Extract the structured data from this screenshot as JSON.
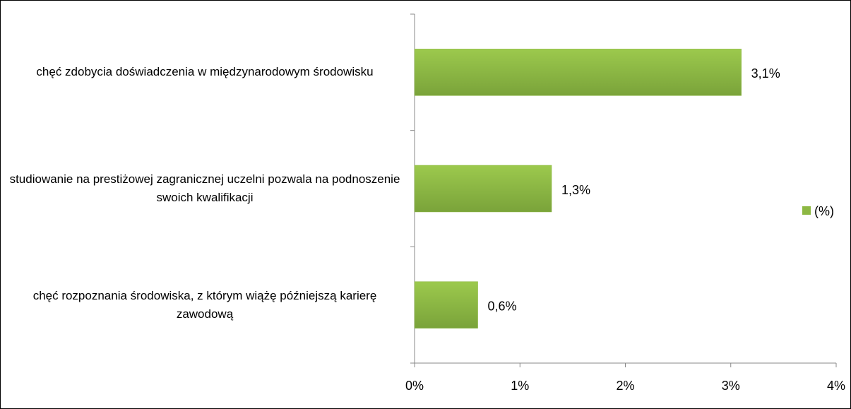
{
  "chart_data": {
    "type": "bar",
    "orientation": "horizontal",
    "categories": [
      "chęć zdobycia doświadczenia w międzynarodowym środowisku",
      "studiowanie na prestiżowej zagranicznej uczelni pozwala na podnoszenie swoich kwalifikacji",
      "chęć rozpoznania środowiska, z którym wiążę późniejszą karierę zawodową"
    ],
    "series": [
      {
        "name": "(%)",
        "color": "#8db843",
        "values": [
          3.1,
          1.3,
          0.6
        ],
        "value_labels": [
          "3,1%",
          "1,3%",
          "0,6%"
        ]
      }
    ],
    "xlim": [
      0,
      4
    ],
    "xticks": [
      {
        "value": 0,
        "label": "0%"
      },
      {
        "value": 1,
        "label": "1%"
      },
      {
        "value": 2,
        "label": "2%"
      },
      {
        "value": 3,
        "label": "3%"
      },
      {
        "value": 4,
        "label": "4%"
      }
    ],
    "grid": false,
    "legend": "right"
  }
}
